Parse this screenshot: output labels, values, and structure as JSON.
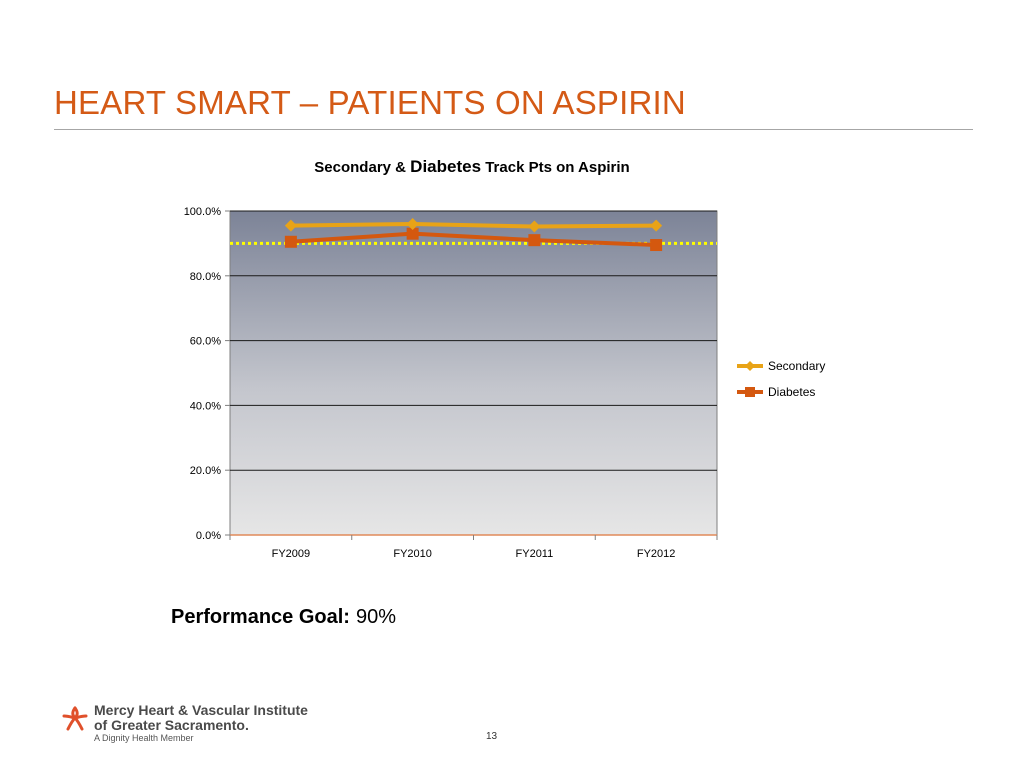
{
  "slide": {
    "title": "HEART SMART – PATIENTS ON ASPIRIN",
    "page_number": "13"
  },
  "chart_title": {
    "part1": "Secondary & ",
    "part2": "Diabetes",
    "part3": " Track Pts on Aspirin"
  },
  "chart_data": {
    "type": "line",
    "title": "Secondary & Diabetes Track Pts on Aspirin",
    "categories": [
      "FY2009",
      "FY2010",
      "FY2011",
      "FY2012"
    ],
    "series": [
      {
        "name": "Secondary",
        "values": [
          95.5,
          96.0,
          95.2,
          95.5
        ],
        "color": "#e8a317",
        "marker": "diamond"
      },
      {
        "name": "Diabetes",
        "values": [
          90.5,
          93.0,
          91.0,
          89.5
        ],
        "color": "#d4580f",
        "marker": "square"
      }
    ],
    "goal_line": {
      "value": 90,
      "color": "#ffff00",
      "style": "dotted"
    },
    "ylim": [
      0,
      100
    ],
    "yticks": [
      "0.0%",
      "20.0%",
      "40.0%",
      "60.0%",
      "80.0%",
      "100.0%"
    ],
    "ytick_values": [
      0,
      20,
      40,
      60,
      80,
      100
    ],
    "xlabel": "",
    "ylabel": "",
    "grid": true,
    "legend_position": "right",
    "plot_background": "gradient dark-gray top to light-gray bottom"
  },
  "performance_goal": {
    "label": "Performance Goal:",
    "value": "90%"
  },
  "logo": {
    "line1": "Mercy Heart & Vascular Institute",
    "line2": "of Greater Sacramento.",
    "line3": "A Dignity Health Member",
    "icon": "mercy-star-logo-icon"
  }
}
